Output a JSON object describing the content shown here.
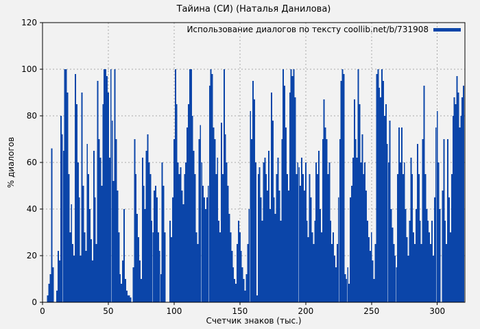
{
  "colors": {
    "bar": "#0b45a9",
    "background": "#f2f2f2",
    "grid": "#a8a8a8",
    "border": "#000000",
    "text": "#000000"
  },
  "chart_data": {
    "type": "bar",
    "title": "Тайина (СИ) (Наталья Данилова)",
    "xlabel": "Счетчик знаков (тыс.)",
    "ylabel": "% диалогов",
    "legend": [
      {
        "label": "Использование диалогов по тексту coollib.net/b/731908",
        "color": "#0b45a9"
      }
    ],
    "legend_position": "top-right-inside",
    "grid": true,
    "xlim": [
      0,
      321
    ],
    "ylim": [
      0,
      120
    ],
    "x_ticks": [
      0,
      50,
      100,
      150,
      200,
      250,
      300
    ],
    "y_ticks": [
      0,
      20,
      40,
      60,
      80,
      100,
      120
    ],
    "x_step": 1,
    "values": [
      0,
      0,
      0,
      0,
      3,
      8,
      12,
      66,
      15,
      0,
      0,
      5,
      22,
      18,
      80,
      72,
      65,
      100,
      100,
      90,
      55,
      30,
      42,
      25,
      20,
      98,
      85,
      60,
      45,
      20,
      90,
      50,
      30,
      22,
      68,
      55,
      40,
      27,
      18,
      65,
      45,
      25,
      95,
      70,
      62,
      50,
      85,
      100,
      100,
      97,
      90,
      62,
      100,
      78,
      52,
      100,
      70,
      48,
      30,
      12,
      8,
      18,
      40,
      10,
      5,
      3,
      3,
      2,
      0,
      15,
      70,
      55,
      38,
      28,
      18,
      10,
      62,
      50,
      40,
      65,
      72,
      60,
      55,
      35,
      30,
      48,
      50,
      45,
      30,
      22,
      12,
      60,
      50,
      30,
      0,
      0,
      0,
      35,
      28,
      45,
      70,
      100,
      85,
      60,
      55,
      58,
      48,
      42,
      55,
      60,
      75,
      85,
      100,
      100,
      80,
      65,
      55,
      30,
      25,
      70,
      76,
      60,
      50,
      45,
      40,
      45,
      50,
      93,
      100,
      98,
      75,
      70,
      55,
      62,
      35,
      30,
      77,
      55,
      100,
      72,
      60,
      50,
      38,
      30,
      22,
      15,
      10,
      8,
      25,
      35,
      30,
      22,
      15,
      10,
      5,
      12,
      25,
      40,
      82,
      70,
      95,
      87,
      60,
      3,
      55,
      58,
      45,
      35,
      60,
      62,
      55,
      48,
      65,
      40,
      90,
      78,
      45,
      38,
      55,
      62,
      48,
      35,
      70,
      100,
      93,
      75,
      55,
      48,
      90,
      100,
      97,
      100,
      88,
      55,
      60,
      58,
      50,
      62,
      55,
      48,
      60,
      35,
      28,
      55,
      45,
      30,
      25,
      35,
      60,
      55,
      65,
      40,
      30,
      70,
      87,
      75,
      70,
      55,
      60,
      35,
      25,
      30,
      20,
      15,
      25,
      45,
      70,
      95,
      100,
      98,
      12,
      10,
      15,
      8,
      45,
      50,
      62,
      87,
      70,
      62,
      100,
      85,
      60,
      72,
      55,
      60,
      48,
      35,
      28,
      22,
      30,
      18,
      10,
      25,
      98,
      100,
      92,
      88,
      100,
      95,
      80,
      85,
      68,
      60,
      78,
      40,
      32,
      25,
      20,
      15,
      55,
      75,
      60,
      75,
      55,
      60,
      40,
      28,
      20,
      35,
      62,
      55,
      30,
      25,
      40,
      68,
      55,
      35,
      25,
      70,
      93,
      55,
      40,
      35,
      30,
      25,
      35,
      20,
      45,
      75,
      82,
      60,
      40,
      0,
      48,
      70,
      35,
      25,
      70,
      45,
      30,
      55,
      80,
      88,
      85,
      97,
      90,
      75,
      80,
      88,
      93
    ]
  }
}
